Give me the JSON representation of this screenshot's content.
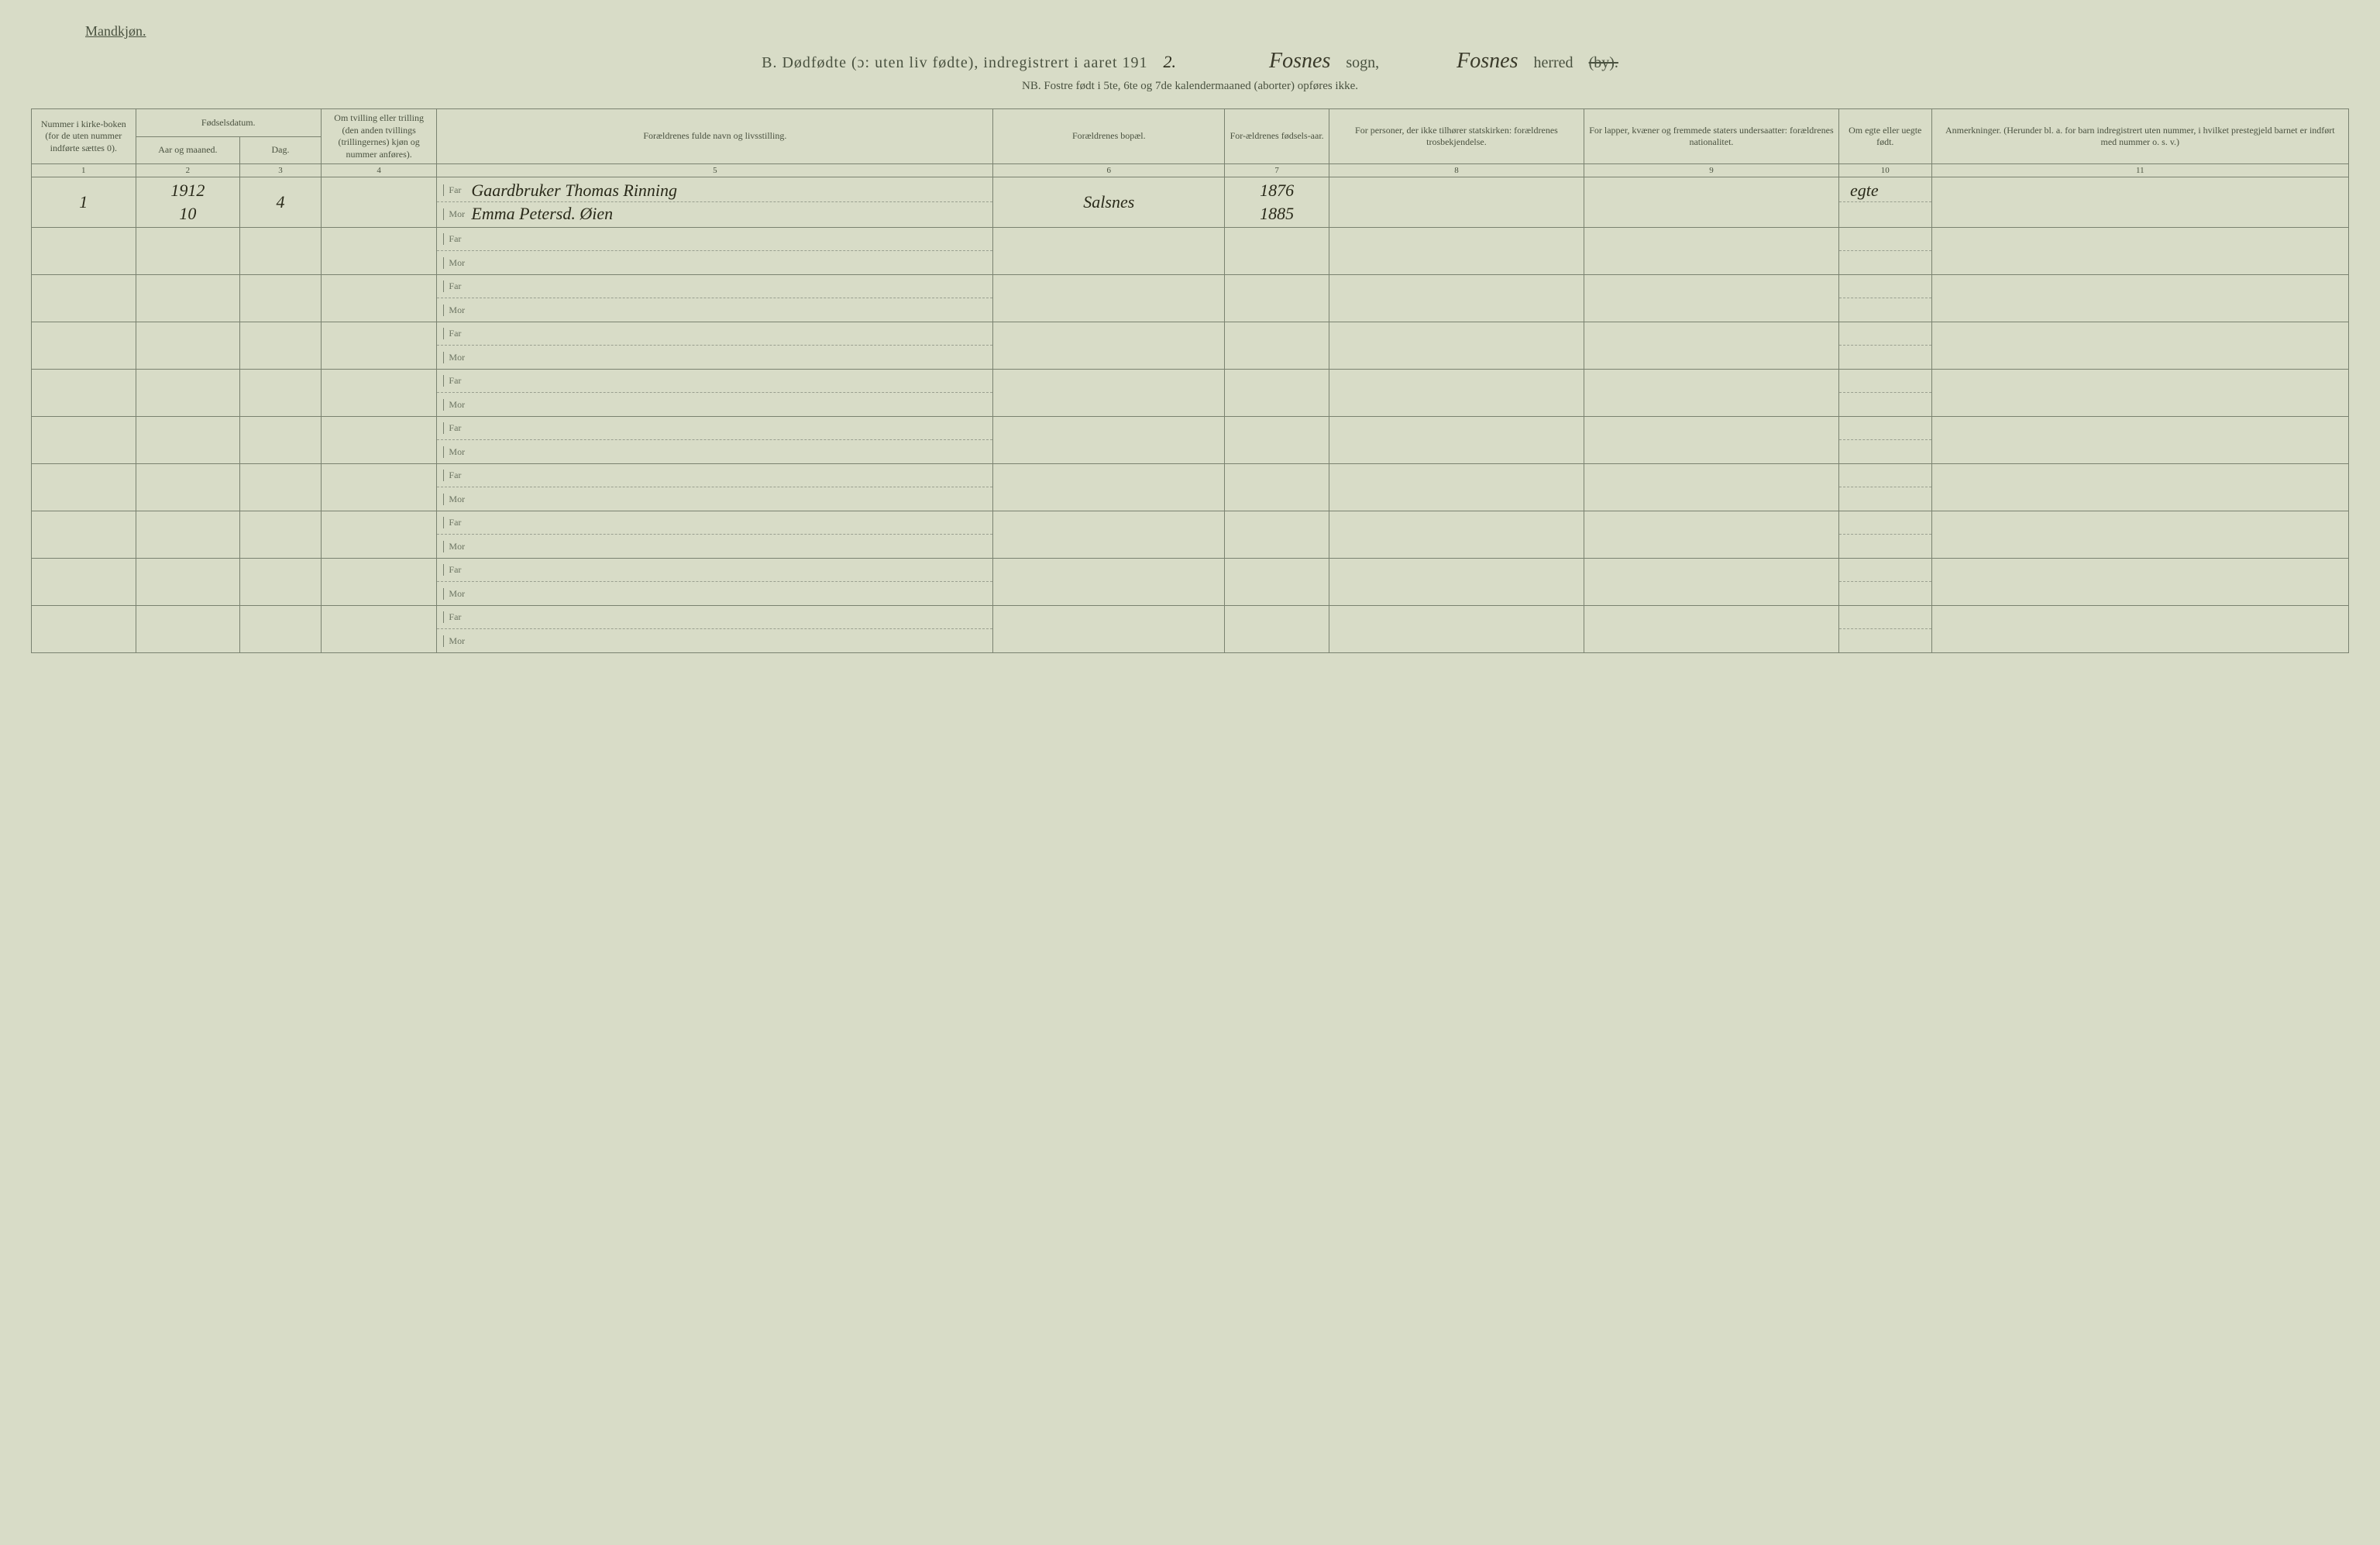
{
  "colors": {
    "background": "#d8dcc7",
    "border": "#7a8270",
    "text": "#4a5240",
    "handwriting": "#2a2a1a"
  },
  "typography": {
    "body_fontsize": 12,
    "title_fontsize": 20,
    "handwriting_fontsize": 22,
    "handwriting_family": "Brush Script MT"
  },
  "header": {
    "gender_label": "Mandkjøn.",
    "title_prefix": "B.  Dødfødte (ɔ: uten liv fødte), indregistrert i aaret 191",
    "year_digit": "2.",
    "sogn_value": "Fosnes",
    "sogn_word": "sogn,",
    "herred_value": "Fosnes",
    "herred_word": "herred",
    "herred_strike": "(by).",
    "nb_line": "NB.  Fostre født i 5te, 6te og 7de kalendermaaned (aborter) opføres ikke."
  },
  "columns": {
    "c1": "Nummer i kirke-boken (for de uten nummer indførte sættes 0).",
    "c2_group": "Fødselsdatum.",
    "c2a": "Aar og maaned.",
    "c2b": "Dag.",
    "c4": "Om tvilling eller trilling (den anden tvillings (trillingernes) kjøn og nummer anføres).",
    "c5": "Forældrenes fulde navn og livsstilling.",
    "c6": "Forældrenes bopæl.",
    "c7": "For-ældrenes fødsels-aar.",
    "c8": "For personer, der ikke tilhører statskirken: forældrenes trosbekjendelse.",
    "c9": "For lapper, kvæner og fremmede staters undersaatter: forældrenes nationalitet.",
    "c10": "Om egte eller uegte født.",
    "c11": "Anmerkninger. (Herunder bl. a. for barn indregistrert uten nummer, i hvilket prestegjeld barnet er indført med nummer o. s. v.)",
    "nums": [
      "1",
      "2",
      "3",
      "4",
      "5",
      "6",
      "7",
      "8",
      "9",
      "10",
      "11"
    ]
  },
  "parent_labels": {
    "far": "Far",
    "mor": "Mor"
  },
  "rows": [
    {
      "num": "1",
      "year_month": "1912",
      "month": "10",
      "day": "4",
      "twin": "",
      "far": "Gaardbruker Thomas Rinning",
      "mor": "Emma Petersd. Øien",
      "bopael": "Salsnes",
      "far_year": "1876",
      "mor_year": "1885",
      "tros": "",
      "nat": "",
      "egte": "egte",
      "anm": ""
    },
    {
      "num": "",
      "year_month": "",
      "month": "",
      "day": "",
      "twin": "",
      "far": "",
      "mor": "",
      "bopael": "",
      "far_year": "",
      "mor_year": "",
      "tros": "",
      "nat": "",
      "egte": "",
      "anm": ""
    },
    {
      "num": "",
      "year_month": "",
      "month": "",
      "day": "",
      "twin": "",
      "far": "",
      "mor": "",
      "bopael": "",
      "far_year": "",
      "mor_year": "",
      "tros": "",
      "nat": "",
      "egte": "",
      "anm": ""
    },
    {
      "num": "",
      "year_month": "",
      "month": "",
      "day": "",
      "twin": "",
      "far": "",
      "mor": "",
      "bopael": "",
      "far_year": "",
      "mor_year": "",
      "tros": "",
      "nat": "",
      "egte": "",
      "anm": ""
    },
    {
      "num": "",
      "year_month": "",
      "month": "",
      "day": "",
      "twin": "",
      "far": "",
      "mor": "",
      "bopael": "",
      "far_year": "",
      "mor_year": "",
      "tros": "",
      "nat": "",
      "egte": "",
      "anm": ""
    },
    {
      "num": "",
      "year_month": "",
      "month": "",
      "day": "",
      "twin": "",
      "far": "",
      "mor": "",
      "bopael": "",
      "far_year": "",
      "mor_year": "",
      "tros": "",
      "nat": "",
      "egte": "",
      "anm": ""
    },
    {
      "num": "",
      "year_month": "",
      "month": "",
      "day": "",
      "twin": "",
      "far": "",
      "mor": "",
      "bopael": "",
      "far_year": "",
      "mor_year": "",
      "tros": "",
      "nat": "",
      "egte": "",
      "anm": ""
    },
    {
      "num": "",
      "year_month": "",
      "month": "",
      "day": "",
      "twin": "",
      "far": "",
      "mor": "",
      "bopael": "",
      "far_year": "",
      "mor_year": "",
      "tros": "",
      "nat": "",
      "egte": "",
      "anm": ""
    },
    {
      "num": "",
      "year_month": "",
      "month": "",
      "day": "",
      "twin": "",
      "far": "",
      "mor": "",
      "bopael": "",
      "far_year": "",
      "mor_year": "",
      "tros": "",
      "nat": "",
      "egte": "",
      "anm": ""
    },
    {
      "num": "",
      "year_month": "",
      "month": "",
      "day": "",
      "twin": "",
      "far": "",
      "mor": "",
      "bopael": "",
      "far_year": "",
      "mor_year": "",
      "tros": "",
      "nat": "",
      "egte": "",
      "anm": ""
    }
  ]
}
